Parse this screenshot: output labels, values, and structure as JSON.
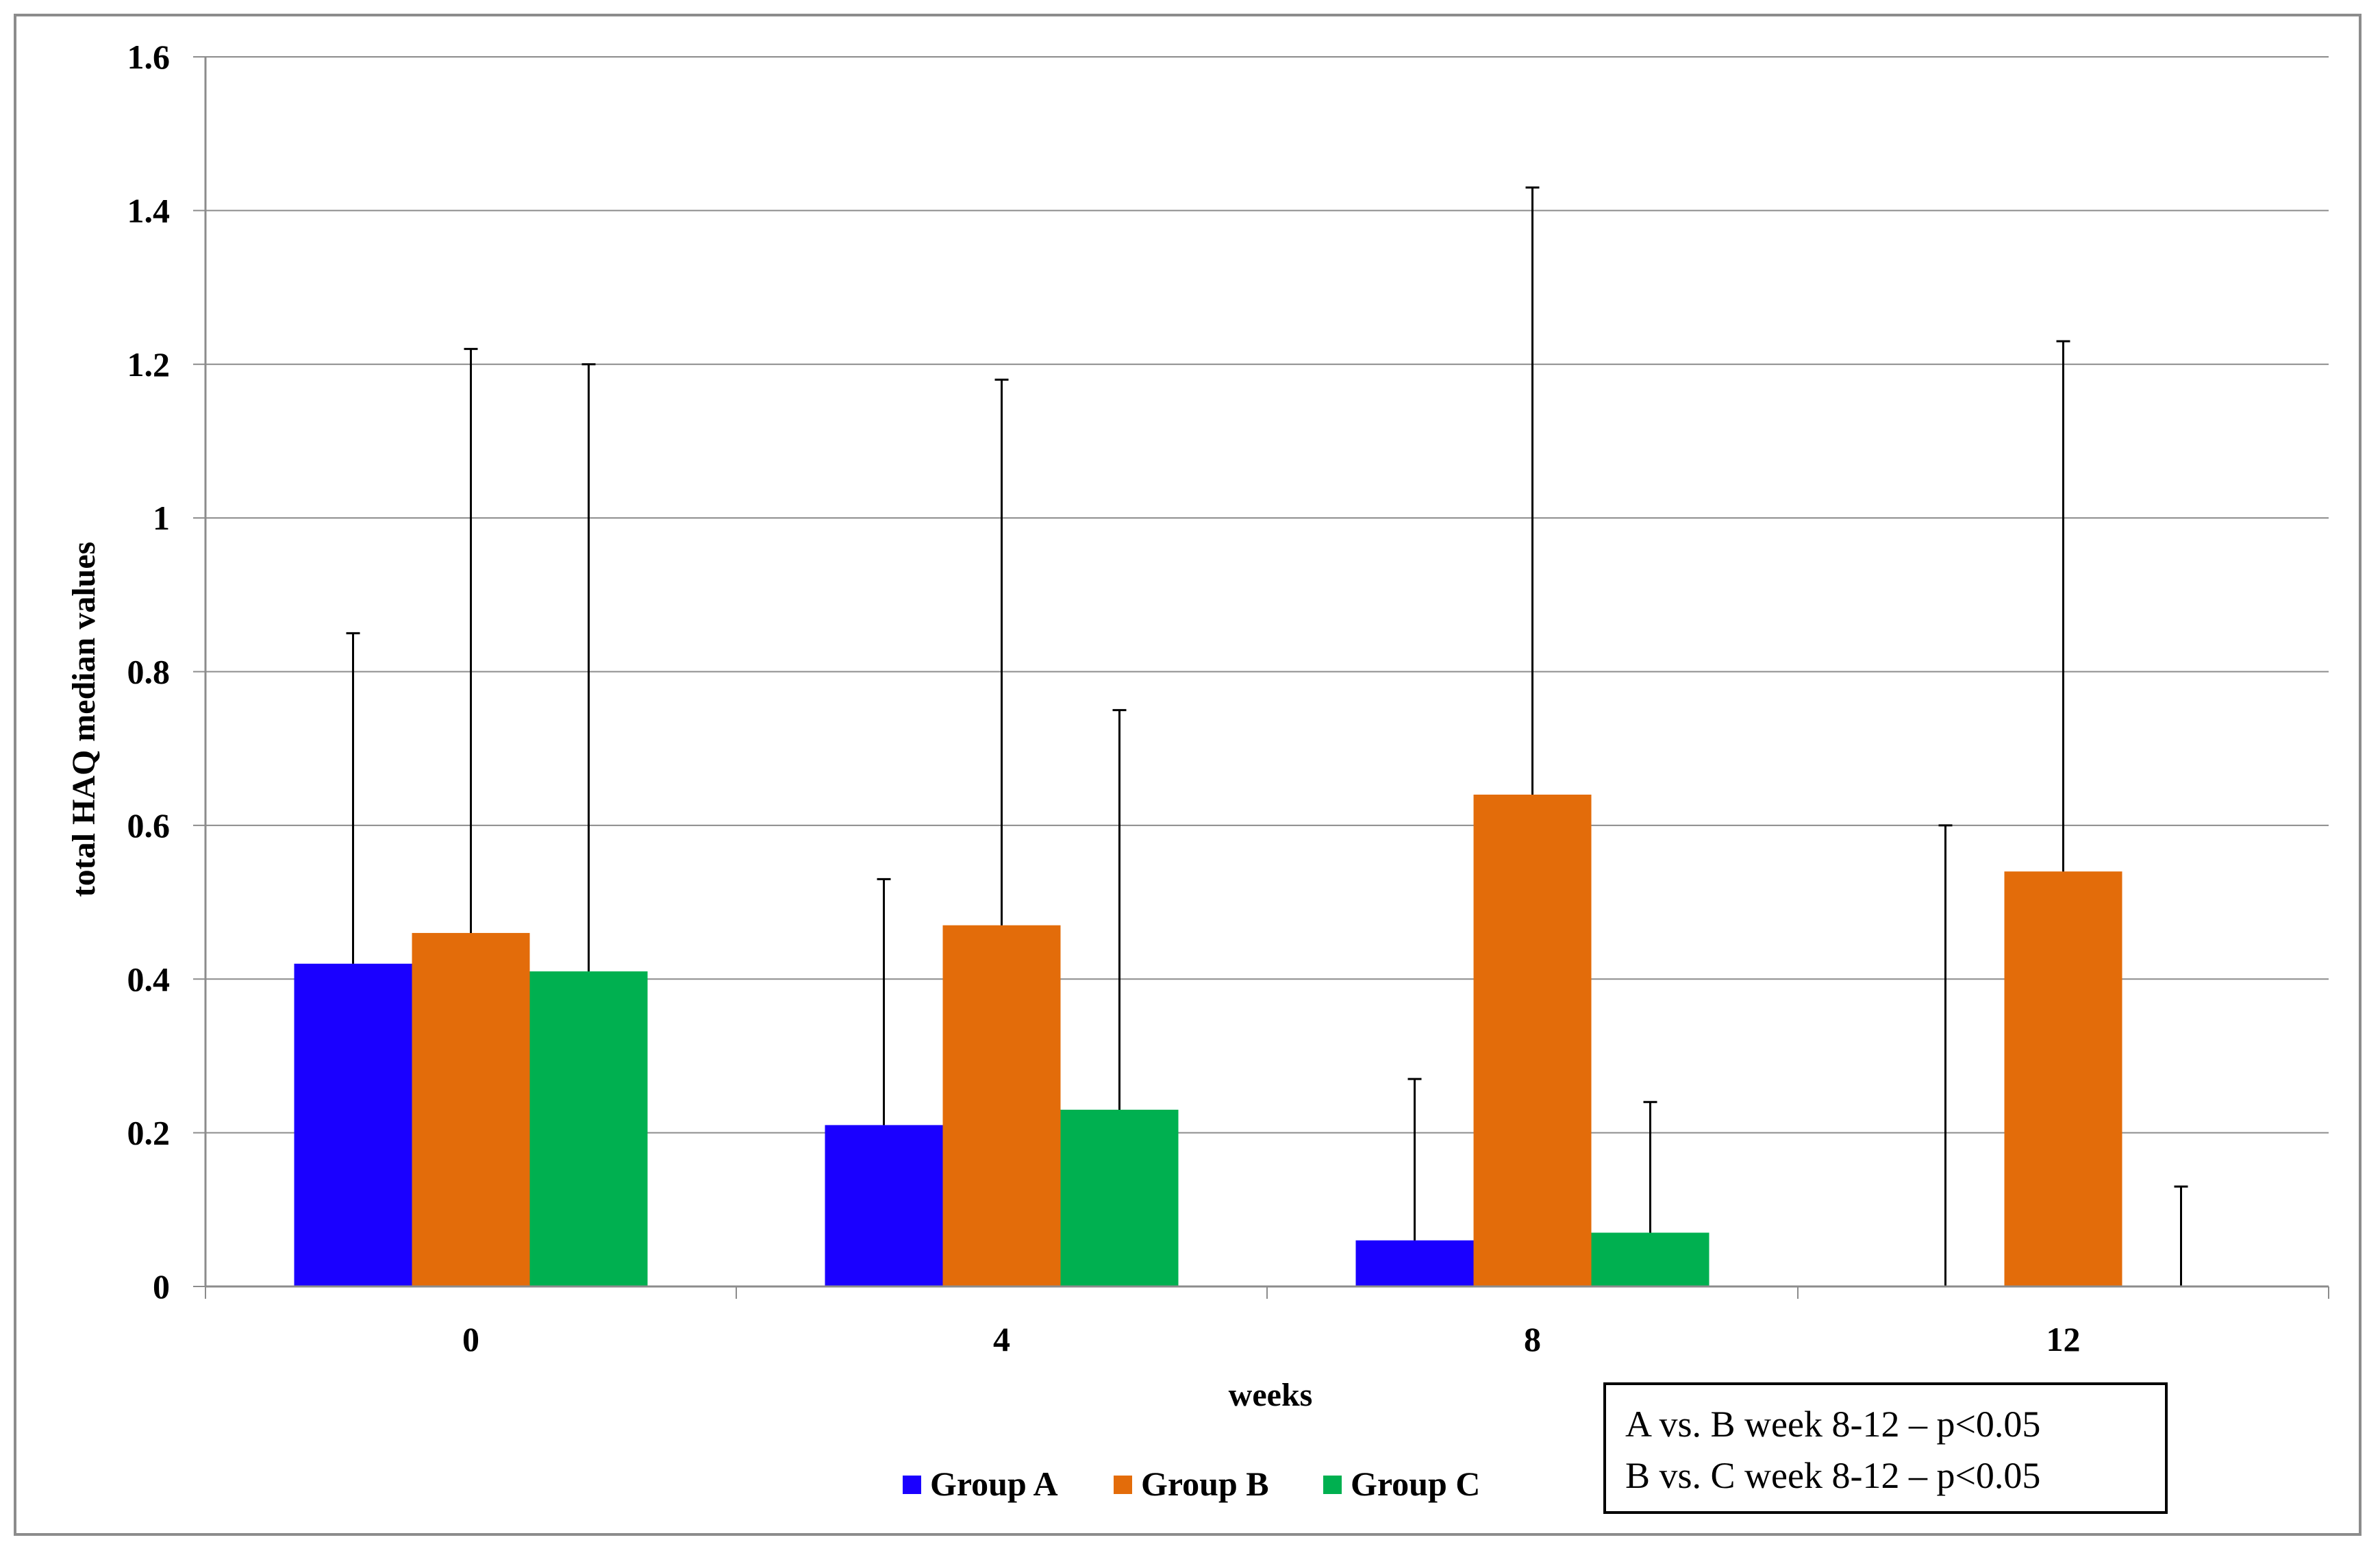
{
  "chart_data": {
    "type": "bar",
    "title": "",
    "xlabel": "weeks",
    "ylabel": "total HAQ median values",
    "categories": [
      "0",
      "4",
      "8",
      "12"
    ],
    "ylim": [
      0,
      1.6
    ],
    "yticks": [
      "0",
      "0.2",
      "0.4",
      "0.6",
      "0.8",
      "1",
      "1.2",
      "1.4",
      "1.6"
    ],
    "grid": true,
    "legend_position": "bottom",
    "series": [
      {
        "name": "Group A",
        "color": "#1a00ff",
        "values": [
          0.42,
          0.21,
          0.06,
          0
        ],
        "error_upper": [
          0.85,
          0.53,
          0.27,
          0.6
        ]
      },
      {
        "name": "Group B",
        "color": "#e36c0a",
        "values": [
          0.46,
          0.47,
          0.64,
          0.54
        ],
        "error_upper": [
          1.22,
          1.18,
          1.43,
          1.23
        ]
      },
      {
        "name": "Group C",
        "color": "#00b050",
        "values": [
          0.41,
          0.23,
          0.07,
          0
        ],
        "error_upper": [
          1.2,
          0.75,
          0.24,
          0.13
        ]
      }
    ],
    "annotation": [
      "A vs. B week 8-12 – p<0.05",
      "B vs. C week 8-12 – p<0.05"
    ]
  }
}
